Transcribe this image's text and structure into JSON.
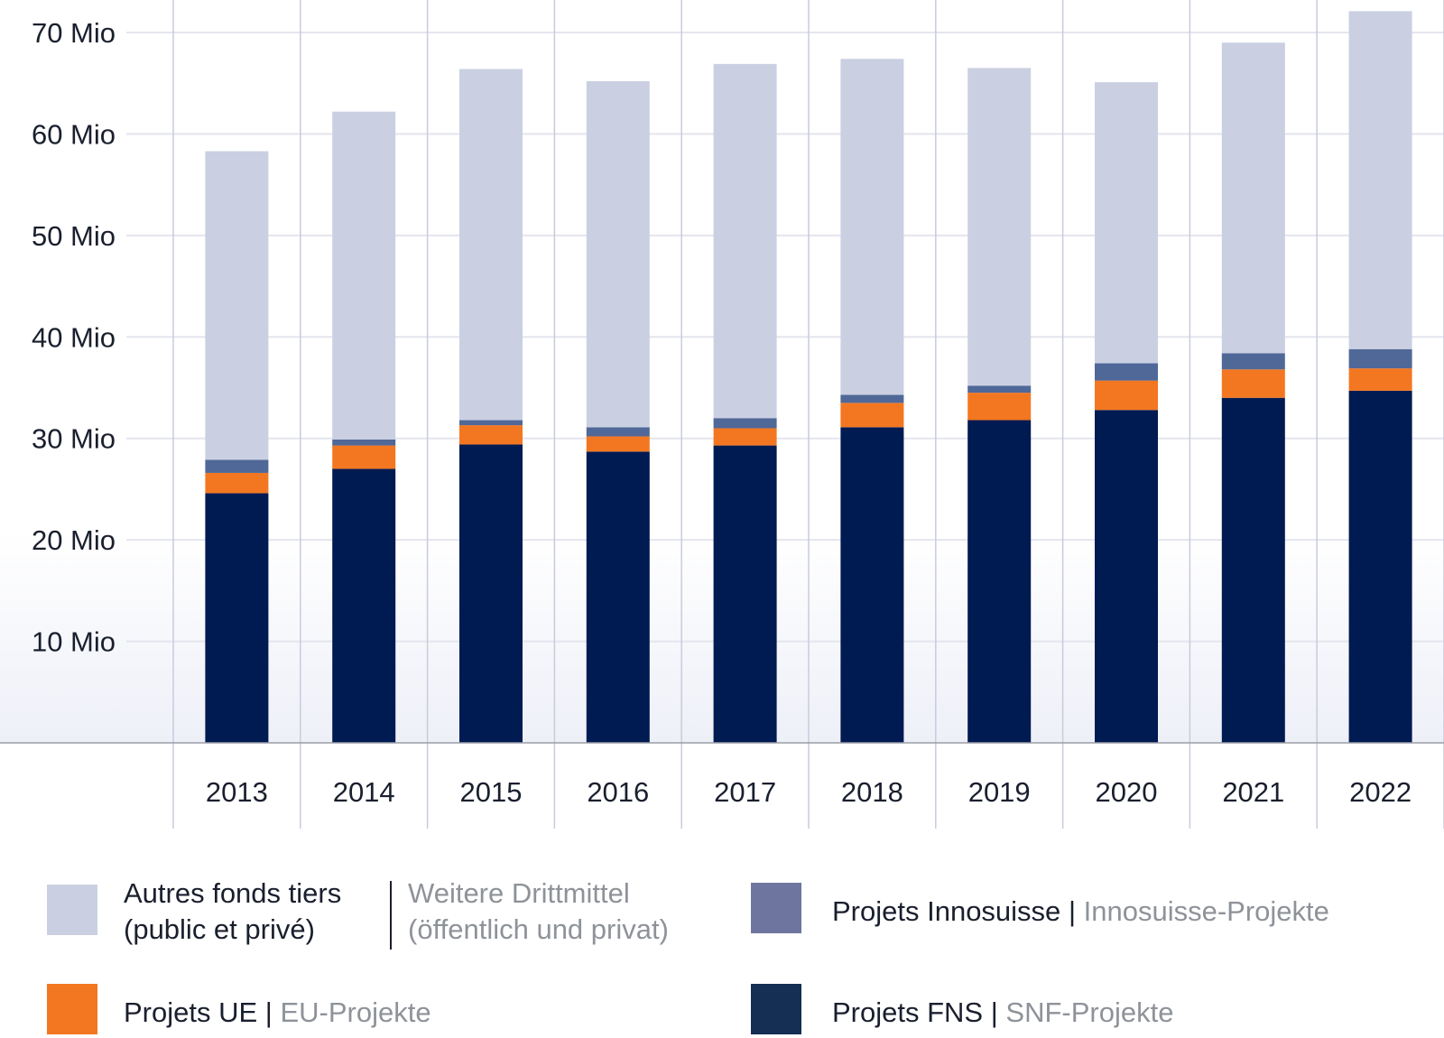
{
  "chart_data": {
    "type": "bar",
    "stacked": true,
    "title": "",
    "xlabel": "",
    "ylabel": "",
    "categories": [
      "2013",
      "2014",
      "2015",
      "2016",
      "2017",
      "2018",
      "2019",
      "2020",
      "2021",
      "2022"
    ],
    "ylim": [
      0,
      70
    ],
    "yticks": [
      10,
      20,
      30,
      40,
      50,
      60,
      70
    ],
    "ytick_labels": [
      "10 Mio",
      "20 Mio",
      "30 Mio",
      "40 Mio",
      "50 Mio",
      "60 Mio",
      "70 Mio"
    ],
    "grid": true,
    "legend_position": "bottom",
    "series": [
      {
        "name": "Projets FNS | SNF-Projekte",
        "color": "#001a52",
        "values": [
          24.6,
          27.0,
          29.4,
          28.7,
          29.3,
          31.1,
          31.8,
          32.8,
          34.0,
          34.7
        ]
      },
      {
        "name": "Projets UE | EU-Projekte",
        "color": "#f37721",
        "values": [
          2.0,
          2.3,
          1.9,
          1.5,
          1.7,
          2.4,
          2.7,
          2.9,
          2.8,
          2.2
        ]
      },
      {
        "name": "Projets Innosuisse | Innosuisse-Projekte",
        "color": "#506898",
        "values": [
          1.3,
          0.6,
          0.5,
          0.9,
          1.0,
          0.8,
          0.7,
          1.7,
          1.6,
          1.9
        ]
      },
      {
        "name": "Autres fonds tiers (public et privé) | Weitere Drittmittel (öffentlich und privat)",
        "color": "#cad0e2",
        "values": [
          30.4,
          32.3,
          34.6,
          34.1,
          34.9,
          33.1,
          31.3,
          27.7,
          30.6,
          33.3
        ]
      }
    ]
  },
  "legend": {
    "autres": {
      "fr_line1": "Autres fonds tiers",
      "fr_line2": "(public et privé)",
      "de_line1": "Weitere Drittmittel",
      "de_line2": "(öffentlich und privat)",
      "color": "#cad0e2"
    },
    "innosuisse": {
      "fr": "Projets Innosuisse",
      "sep": "|",
      "de": "Innosuisse-Projekte",
      "color": "#6e76a0"
    },
    "ue": {
      "fr": "Projets UE",
      "sep": "|",
      "de": "EU-Projekte",
      "color": "#f37721"
    },
    "fns": {
      "fr": "Projets FNS",
      "sep": "|",
      "de": "SNF-Projekte",
      "color": "#142e54"
    }
  }
}
